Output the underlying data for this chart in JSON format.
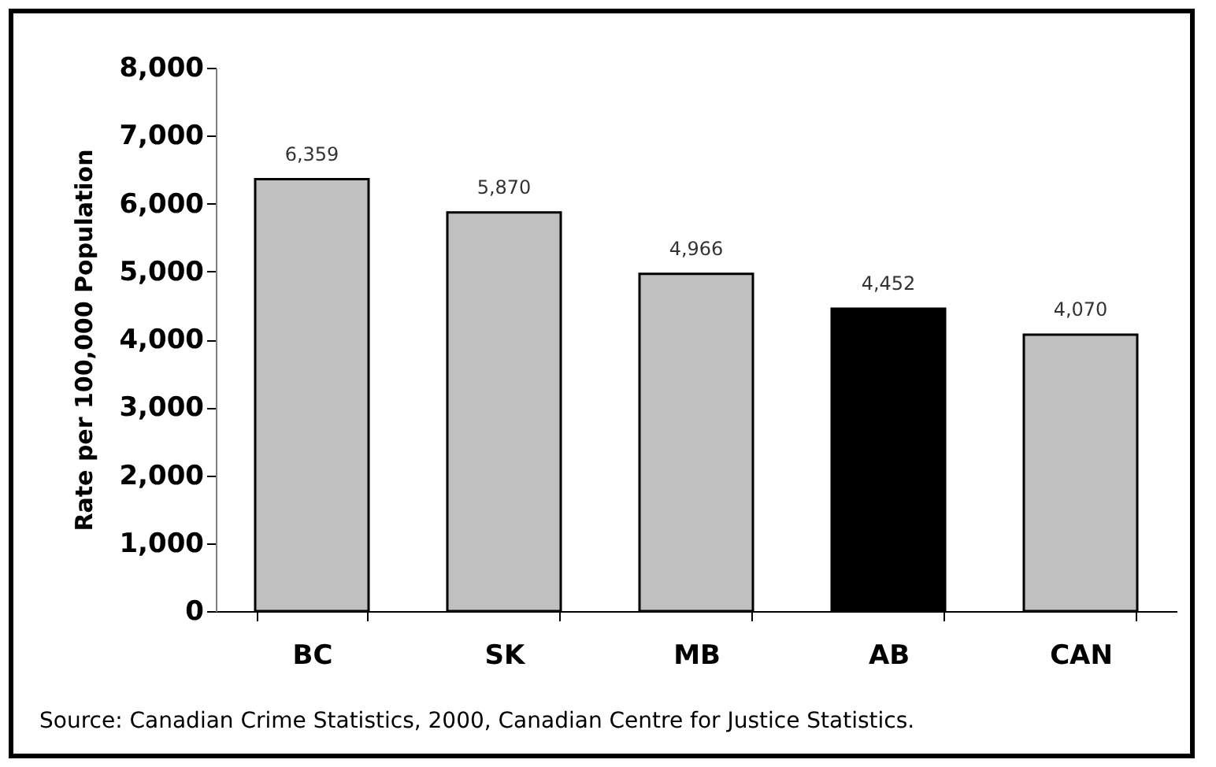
{
  "chart_data": {
    "type": "bar",
    "categories": [
      "BC",
      "SK",
      "MB",
      "AB",
      "CAN"
    ],
    "values": [
      6359,
      5870,
      4966,
      4452,
      4070
    ],
    "colors": [
      "#c0c0c0",
      "#c0c0c0",
      "#c0c0c0",
      "#000000",
      "#c0c0c0"
    ],
    "ylabel": "Rate per 100,000 Population",
    "ylim": [
      0,
      8000
    ],
    "yticks": [
      0,
      {
        "value": 1000,
        "label": "1,000"
      },
      {
        "value": 2000,
        "label": "2,000"
      },
      {
        "value": 3000,
        "label": "3,000"
      },
      {
        "value": 4000,
        "label": "4,000"
      },
      {
        "value": 5000,
        "label": "5,000"
      },
      {
        "value": 6000,
        "label": "6,000"
      },
      {
        "value": 7000,
        "label": "7,000"
      },
      {
        "value": 8000,
        "label": "8,000"
      }
    ],
    "legend": false,
    "grid": false,
    "value_labels": [
      "6,359",
      "5,870",
      "4,966",
      "4,452",
      "4,070"
    ],
    "annotations": [
      "Source: Canadian Crime Statistics, 2000, Canadian Centre for Justice Statistics."
    ]
  }
}
